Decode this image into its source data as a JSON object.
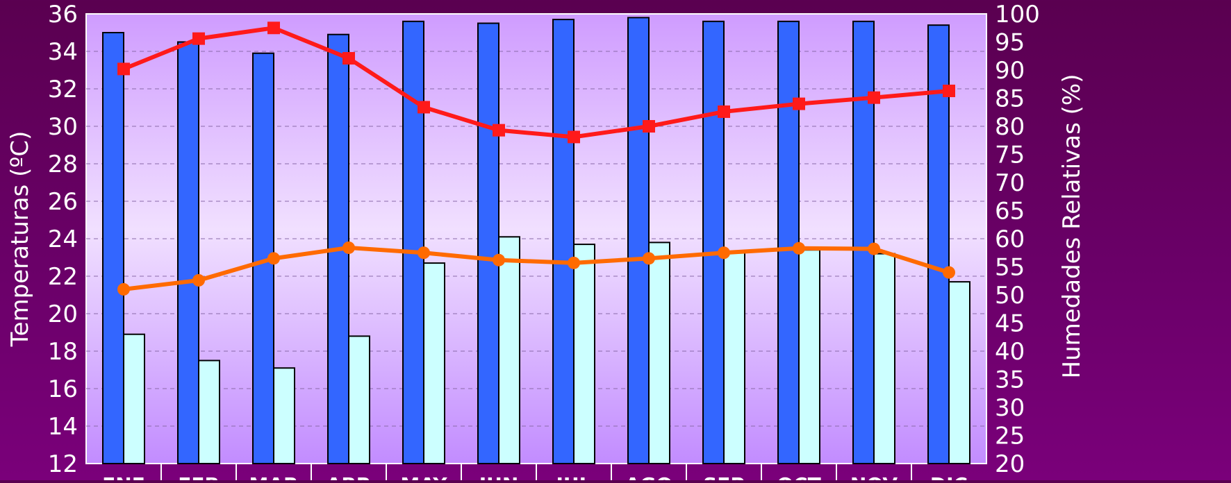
{
  "chart_data": {
    "type": "bar",
    "title": "",
    "categories": [
      "ENE",
      "FEB",
      "MAR",
      "ABR",
      "MAY",
      "JUN",
      "JUL",
      "AGO",
      "SEP",
      "OCT",
      "NOV",
      "DIC"
    ],
    "y_left": {
      "label": "Temperaturas (ºC)",
      "range": [
        12,
        36
      ],
      "ticks": [
        12,
        14,
        16,
        18,
        20,
        22,
        24,
        26,
        28,
        30,
        32,
        34,
        36
      ]
    },
    "y_right": {
      "label": "Humedades Relativas (%)",
      "range": [
        20,
        100
      ],
      "ticks": [
        20,
        25,
        30,
        35,
        40,
        45,
        50,
        55,
        60,
        65,
        70,
        75,
        80,
        85,
        90,
        95,
        100
      ]
    },
    "series": [
      {
        "type": "bar",
        "axis": "left",
        "color": "#3366ff",
        "values": [
          35.0,
          34.5,
          33.9,
          34.9,
          35.6,
          35.5,
          35.7,
          35.8,
          35.6,
          35.6,
          35.6,
          35.4
        ]
      },
      {
        "type": "bar",
        "axis": "left",
        "color": "#ccffff",
        "values": [
          18.9,
          17.5,
          17.1,
          18.8,
          22.7,
          24.1,
          23.7,
          23.8,
          23.3,
          23.4,
          23.2,
          21.7
        ]
      },
      {
        "type": "line",
        "axis": "right",
        "color": "#ff1a1a",
        "marker": "square",
        "values": [
          90.2,
          95.6,
          97.5,
          92.1,
          83.4,
          79.3,
          78.1,
          80.0,
          82.6,
          84.0,
          85.1,
          86.3
        ]
      },
      {
        "type": "line",
        "axis": "right",
        "color": "#ff6a00",
        "marker": "circle",
        "values": [
          51.0,
          52.6,
          56.5,
          58.4,
          57.5,
          56.2,
          55.7,
          56.5,
          57.5,
          58.3,
          58.2,
          54.0
        ]
      }
    ],
    "grid": true,
    "legend": "none"
  }
}
